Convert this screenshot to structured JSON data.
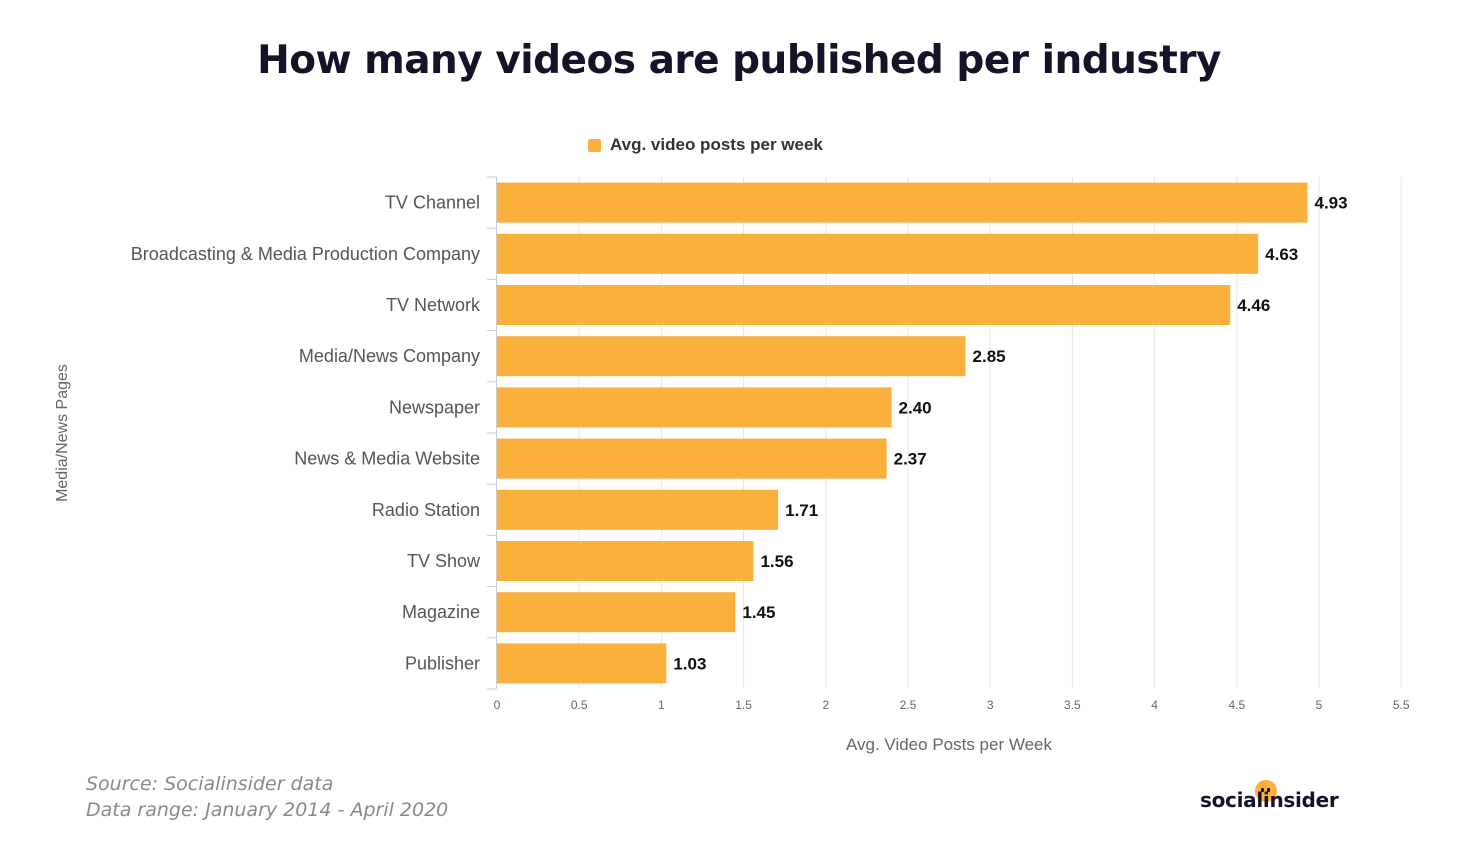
{
  "title": "How many videos are published per industry",
  "source_line": "Source: Socialinsider data",
  "range_line": "Data range: January 2014 - April 2020",
  "brand": "socialinsider",
  "colors": {
    "bar": "#FBAF3C",
    "grid": "#e6e6e6",
    "axis": "#cccccc"
  },
  "chart_data": {
    "type": "bar",
    "orientation": "horizontal",
    "categories": [
      "TV Channel",
      "Broadcasting & Media Production Company",
      "TV Network",
      "Media/News Company",
      "Newspaper",
      "News & Media Website",
      "Radio Station",
      "TV Show",
      "Magazine",
      "Publisher"
    ],
    "series": [
      {
        "name": "Avg. video posts per week",
        "values": [
          4.93,
          4.63,
          4.46,
          2.85,
          2.4,
          2.37,
          1.71,
          1.56,
          1.45,
          1.03
        ],
        "labels": [
          "4.93",
          "4.63",
          "4.46",
          "2.85",
          "2.40",
          "2.37",
          "1.71",
          "1.56",
          "1.45",
          "1.03"
        ]
      }
    ],
    "xlabel": "Avg. Video Posts per Week",
    "ylabel": "Media/News Pages",
    "xlim": [
      0,
      5.5
    ],
    "ticks": [
      "0",
      "0.5",
      "1",
      "1.5",
      "2",
      "2.5",
      "3",
      "3.5",
      "4",
      "4.5",
      "5",
      "5.5"
    ],
    "grid": true,
    "legend_position": "top"
  }
}
